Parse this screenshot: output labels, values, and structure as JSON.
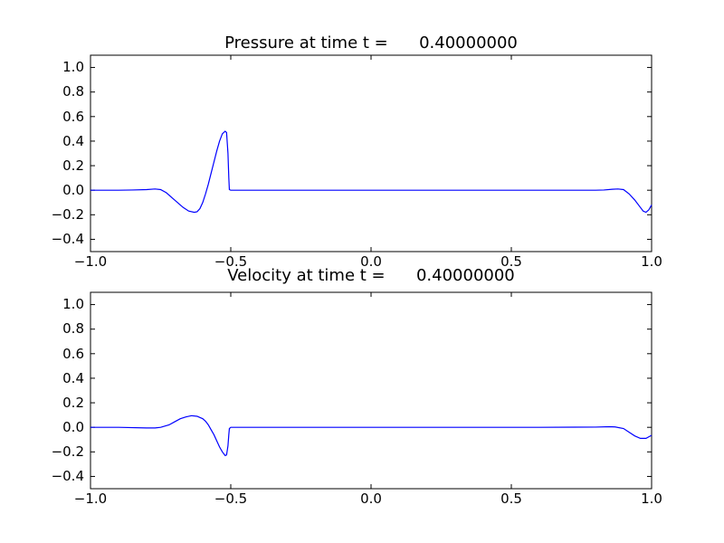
{
  "chart_data": [
    {
      "type": "line",
      "title": "Pressure at time t =      0.40000000",
      "xlim": [
        -1.0,
        1.0
      ],
      "ylim": [
        -0.5,
        1.1
      ],
      "xticks": [
        -1.0,
        -0.5,
        0.0,
        0.5,
        1.0
      ],
      "xtick_labels": [
        "−1.0",
        "−0.5",
        "0.0",
        "0.5",
        "1.0"
      ],
      "yticks": [
        -0.4,
        -0.2,
        0.0,
        0.2,
        0.4,
        0.6,
        0.8,
        1.0
      ],
      "ytick_labels": [
        "−0.4",
        "−0.2",
        "0.0",
        "0.2",
        "0.4",
        "0.6",
        "0.8",
        "1.0"
      ],
      "grid": false,
      "line_color": "#0000ff",
      "series": [
        {
          "x": [
            -1.0,
            -0.9,
            -0.85,
            -0.8,
            -0.77,
            -0.75,
            -0.73,
            -0.7,
            -0.67,
            -0.65,
            -0.63,
            -0.62,
            -0.61,
            -0.6,
            -0.59,
            -0.58,
            -0.57,
            -0.56,
            -0.55,
            -0.54,
            -0.53,
            -0.52,
            -0.515,
            -0.51,
            -0.507,
            -0.505,
            -0.5,
            -0.49,
            -0.4,
            -0.2,
            0.0,
            0.2,
            0.4,
            0.6,
            0.75,
            0.8,
            0.83,
            0.86,
            0.88,
            0.9,
            0.92,
            0.94,
            0.96,
            0.97,
            0.98,
            0.99,
            1.0
          ],
          "y": [
            0.0,
            0.0,
            0.002,
            0.005,
            0.01,
            0.005,
            -0.02,
            -0.08,
            -0.14,
            -0.17,
            -0.18,
            -0.175,
            -0.15,
            -0.1,
            -0.03,
            0.05,
            0.14,
            0.23,
            0.32,
            0.4,
            0.46,
            0.48,
            0.47,
            0.3,
            0.1,
            0.005,
            0.0,
            0.0,
            0.0,
            0.0,
            0.0,
            0.0,
            0.0,
            0.0,
            0.0,
            0.0,
            0.002,
            0.008,
            0.01,
            0.005,
            -0.03,
            -0.08,
            -0.14,
            -0.17,
            -0.18,
            -0.16,
            -0.12
          ]
        }
      ]
    },
    {
      "type": "line",
      "title": "Velocity at time t =      0.40000000",
      "xlim": [
        -1.0,
        1.0
      ],
      "ylim": [
        -0.5,
        1.1
      ],
      "xticks": [
        -1.0,
        -0.5,
        0.0,
        0.5,
        1.0
      ],
      "xtick_labels": [
        "−1.0",
        "−0.5",
        "0.0",
        "0.5",
        "1.0"
      ],
      "yticks": [
        -0.4,
        -0.2,
        0.0,
        0.2,
        0.4,
        0.6,
        0.8,
        1.0
      ],
      "ytick_labels": [
        "−0.4",
        "−0.2",
        "0.0",
        "0.2",
        "0.4",
        "0.6",
        "0.8",
        "1.0"
      ],
      "grid": false,
      "line_color": "#0000ff",
      "series": [
        {
          "x": [
            -1.0,
            -0.9,
            -0.8,
            -0.77,
            -0.75,
            -0.72,
            -0.7,
            -0.68,
            -0.66,
            -0.64,
            -0.62,
            -0.6,
            -0.59,
            -0.58,
            -0.57,
            -0.56,
            -0.55,
            -0.54,
            -0.53,
            -0.52,
            -0.515,
            -0.51,
            -0.507,
            -0.505,
            -0.5,
            -0.49,
            -0.3,
            0.0,
            0.3,
            0.6,
            0.8,
            0.85,
            0.87,
            0.9,
            0.92,
            0.94,
            0.96,
            0.98,
            1.0
          ],
          "y": [
            0.0,
            0.0,
            -0.005,
            -0.005,
            0.0,
            0.02,
            0.045,
            0.07,
            0.085,
            0.095,
            0.09,
            0.07,
            0.05,
            0.02,
            -0.02,
            -0.06,
            -0.11,
            -0.16,
            -0.2,
            -0.23,
            -0.225,
            -0.15,
            -0.06,
            -0.01,
            0.0,
            0.0,
            0.0,
            0.0,
            0.0,
            0.0,
            0.002,
            0.005,
            0.003,
            -0.01,
            -0.04,
            -0.07,
            -0.09,
            -0.09,
            -0.065
          ]
        }
      ]
    }
  ]
}
